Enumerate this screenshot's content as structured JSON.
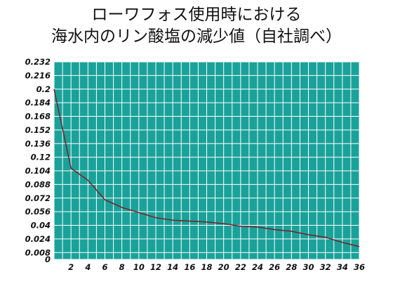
{
  "chart_data": {
    "type": "line",
    "title_lines": [
      "ローワフォス使用時における",
      "海水内のリン酸塩の減少値（自社調べ）"
    ],
    "xlabel": "",
    "ylabel": "",
    "x_ticks": [
      2,
      4,
      6,
      8,
      10,
      12,
      14,
      16,
      18,
      20,
      22,
      24,
      26,
      28,
      30,
      32,
      34,
      36
    ],
    "y_ticks": [
      "0",
      "0.008",
      "0.024",
      "0.04",
      "0.056",
      "0.072",
      "0.088",
      "0.104",
      "0.12",
      "0.136",
      "0.152",
      "0.168",
      "0.184",
      "0.2",
      "0.216",
      "0.232"
    ],
    "xlim": [
      0,
      36
    ],
    "grid": true,
    "colors": {
      "plot_background": "#1aa29a",
      "grid": "#ffffff",
      "line": "#7a1f2a"
    },
    "series": [
      {
        "x": [
          0,
          2,
          4,
          6,
          8,
          10,
          12,
          14,
          16,
          18,
          20,
          22,
          24,
          26,
          28,
          30,
          32,
          34,
          36
        ],
        "values": [
          0.2,
          0.107,
          0.093,
          0.07,
          0.061,
          0.055,
          0.049,
          0.046,
          0.045,
          0.044,
          0.042,
          0.039,
          0.038,
          0.035,
          0.033,
          0.029,
          0.026,
          0.02,
          0.015
        ]
      }
    ]
  }
}
